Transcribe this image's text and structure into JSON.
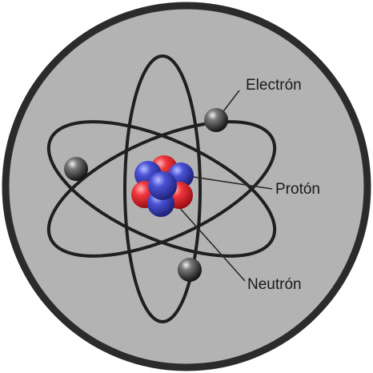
{
  "labels": {
    "electron": "Electrón",
    "proton": "Protón",
    "neutron": "Neutrón"
  },
  "colors": {
    "disc": "#b3b3b3",
    "rim": "#2b2b2b",
    "orbit": "#1f1f1f",
    "proton": "#e3242b",
    "neutron": "#3b43c7",
    "electron": "#2a2a2a"
  }
}
